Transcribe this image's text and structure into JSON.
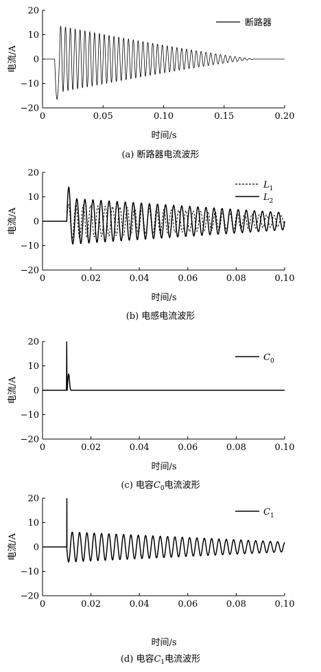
{
  "chart_data": [
    {
      "type": "line",
      "panel_id": "a",
      "caption": "(a) 断路器电流波形",
      "xlabel": "时间/s",
      "ylabel": "电流/A",
      "xlim": [
        0,
        0.2
      ],
      "ylim": [
        -20,
        20
      ],
      "xticks": [
        0,
        0.05,
        0.1,
        0.15,
        0.2
      ],
      "xtick_labels": [
        "0",
        "0.05",
        "0.10",
        "0.15",
        "0.20"
      ],
      "yticks": [
        -20,
        -10,
        0,
        10,
        20
      ],
      "ytick_labels": [
        "−20",
        "−10",
        "0",
        "10",
        "20"
      ],
      "grid": false,
      "legend_position": "top-right",
      "series": [
        {
          "name": "断路器",
          "style": "solid",
          "color": "#000000",
          "signal": {
            "onset": 0.01,
            "frequency_hz": 250,
            "initial_amplitude": 14,
            "decay_end": 0.176,
            "first_negative_peak": -16.5,
            "baseline": 0
          }
        }
      ]
    },
    {
      "type": "line",
      "panel_id": "b",
      "caption": "(b) 电感电流波形",
      "xlabel": "时间/s",
      "ylabel": "电流/A",
      "xlim": [
        0,
        0.1
      ],
      "ylim": [
        -20,
        20
      ],
      "xticks": [
        0,
        0.02,
        0.04,
        0.06,
        0.08,
        0.1
      ],
      "xtick_labels": [
        "0",
        "0.02",
        "0.04",
        "0.06",
        "0.08",
        "0.10"
      ],
      "yticks": [
        -20,
        -10,
        0,
        10,
        20
      ],
      "ytick_labels": [
        "−20",
        "−10",
        "0",
        "10",
        "20"
      ],
      "grid": false,
      "legend_position": "top-right",
      "series": [
        {
          "name": "L",
          "subscript": "1",
          "style": "dashed",
          "color": "#000000",
          "signal": {
            "onset": 0.01,
            "frequency_hz": 330,
            "initial_amplitude": 7,
            "final_amplitude": 2.2,
            "first_peak": 7,
            "baseline": 0
          }
        },
        {
          "name": "L",
          "subscript": "2",
          "style": "solid",
          "color": "#000000",
          "signal": {
            "onset": 0.01,
            "frequency_hz": 300,
            "initial_amplitude": 9.5,
            "final_amplitude": 3.5,
            "first_peak": 14,
            "baseline": 0
          }
        }
      ]
    },
    {
      "type": "line",
      "panel_id": "c",
      "caption": "(c) 电容C0电流波形",
      "caption_parts": {
        "prefix": "(c) 电容",
        "var": "C",
        "sub": "0",
        "suffix": "电流波形"
      },
      "xlabel": "时间/s",
      "ylabel": "电流/A",
      "xlim": [
        0,
        0.1
      ],
      "ylim": [
        -20,
        20
      ],
      "xticks": [
        0,
        0.02,
        0.04,
        0.06,
        0.08,
        0.1
      ],
      "xtick_labels": [
        "0",
        "0.02",
        "0.04",
        "0.06",
        "0.08",
        "0.10"
      ],
      "yticks": [
        -20,
        -10,
        0,
        10,
        20
      ],
      "ytick_labels": [
        "−20",
        "−10",
        "0",
        "10",
        "20"
      ],
      "grid": false,
      "legend_position": "top-right",
      "series": [
        {
          "name": "C",
          "subscript": "0",
          "style": "solid",
          "color": "#000000",
          "x": [
            0,
            0.0099,
            0.01,
            0.0101,
            0.0102,
            0.0104,
            0.0106,
            0.0108,
            0.011,
            0.0112,
            0.0114,
            0.0116,
            0.0118,
            0.012,
            0.1
          ],
          "y": [
            0,
            0,
            20,
            0,
            0,
            3.2,
            6.0,
            6.8,
            5.8,
            3.3,
            1.0,
            0.2,
            0,
            0,
            0
          ]
        }
      ]
    },
    {
      "type": "line",
      "panel_id": "d",
      "caption": "(d) 电容C1电流波形",
      "caption_parts": {
        "prefix": "(d) 电容",
        "var": "C",
        "sub": "1",
        "suffix": "电流波形"
      },
      "xlabel": "时间/s",
      "ylabel": "电流/A",
      "xlim": [
        0,
        0.1
      ],
      "ylim": [
        -20,
        20
      ],
      "xticks": [
        0,
        0.02,
        0.04,
        0.06,
        0.08,
        0.1
      ],
      "xtick_labels": [
        "0",
        "0.02",
        "0.04",
        "0.06",
        "0.08",
        "0.10"
      ],
      "yticks": [
        -20,
        -10,
        0,
        10,
        20
      ],
      "ytick_labels": [
        "−20",
        "−10",
        "0",
        "10",
        "20"
      ],
      "grid": false,
      "legend_position": "top-right",
      "series": [
        {
          "name": "C",
          "subscript": "1",
          "style": "solid",
          "color": "#000000",
          "signal": {
            "onset": 0.01,
            "spike": 20,
            "frequency_hz": 330,
            "initial_amplitude": 6.2,
            "final_amplitude": 2.0,
            "baseline": 0
          }
        }
      ]
    }
  ]
}
